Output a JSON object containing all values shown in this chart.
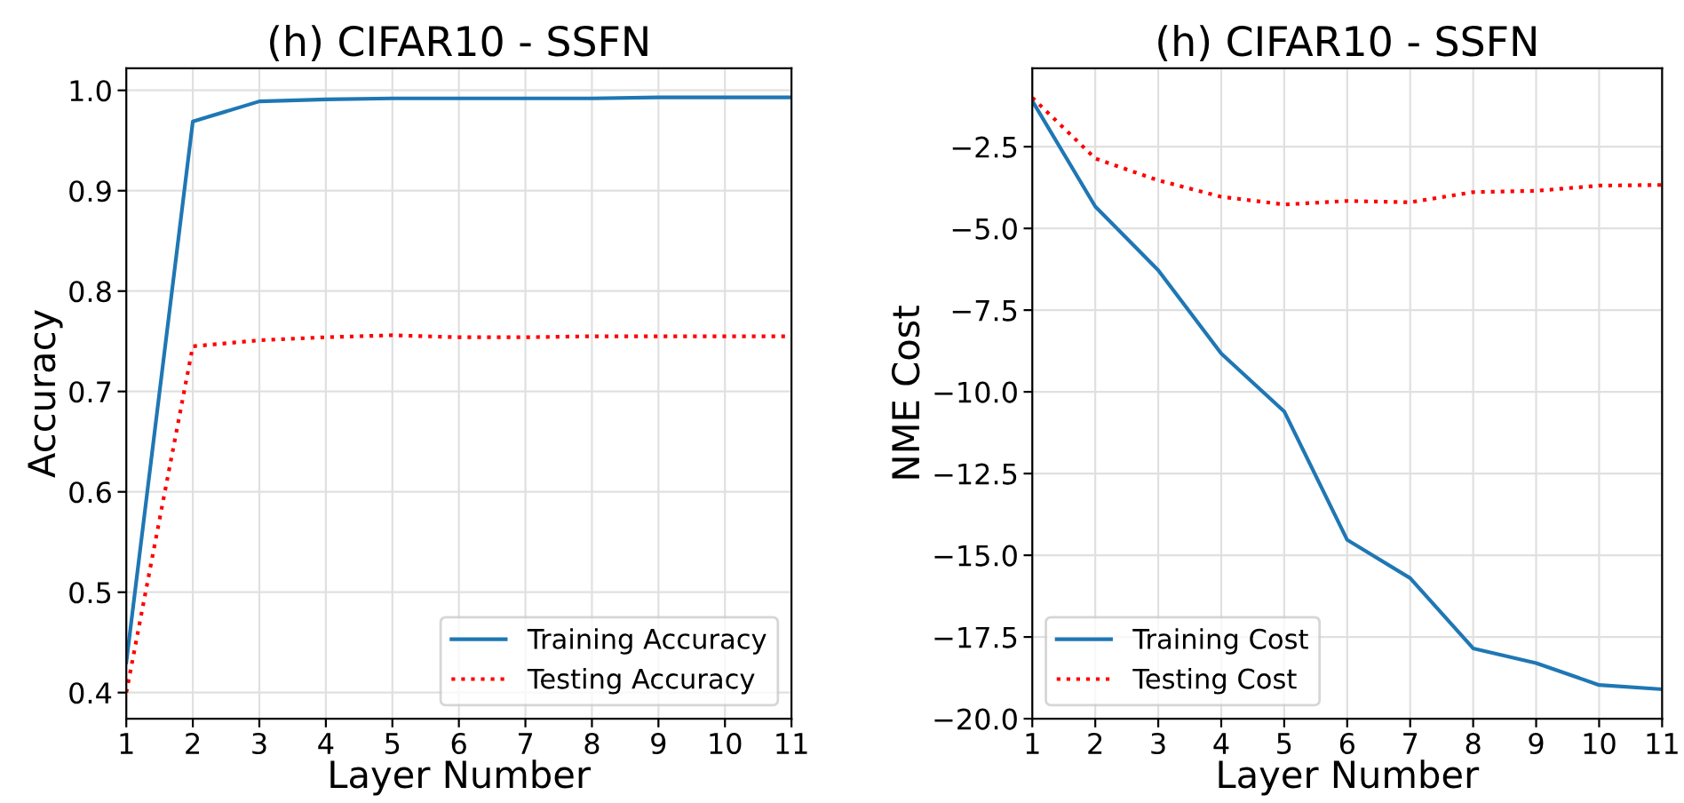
{
  "chart_data": [
    {
      "type": "line",
      "title": "(h) CIFAR10 - SSFN",
      "xlabel": "Layer Number",
      "ylabel": "Accuracy",
      "x": [
        1,
        2,
        3,
        4,
        5,
        6,
        7,
        8,
        9,
        10,
        11
      ],
      "series": [
        {
          "name": "Training Accuracy",
          "color": "#1f77b4",
          "line_style": "solid",
          "values": [
            0.43,
            0.969,
            0.989,
            0.991,
            0.992,
            0.992,
            0.992,
            0.992,
            0.993,
            0.993,
            0.993
          ]
        },
        {
          "name": "Testing Accuracy",
          "color": "#ff0000",
          "line_style": "dotted",
          "values": [
            0.4,
            0.745,
            0.751,
            0.754,
            0.756,
            0.754,
            0.754,
            0.755,
            0.755,
            0.755,
            0.755
          ]
        }
      ],
      "xlim": [
        1,
        11
      ],
      "xticks": [
        1,
        2,
        3,
        4,
        5,
        6,
        7,
        8,
        9,
        10,
        11
      ],
      "ylim": [
        0.374,
        1.022
      ],
      "yticks": [
        {
          "value": 0.4,
          "label": "0.4"
        },
        {
          "value": 0.5,
          "label": "0.5"
        },
        {
          "value": 0.6,
          "label": "0.6"
        },
        {
          "value": 0.7,
          "label": "0.7"
        },
        {
          "value": 0.8,
          "label": "0.8"
        },
        {
          "value": 0.9,
          "label": "0.9"
        },
        {
          "value": 1.0,
          "label": "1.0"
        }
      ],
      "grid": true,
      "legend": "bottom right"
    },
    {
      "type": "line",
      "title": "(h) CIFAR10 - SSFN",
      "xlabel": "Layer Number",
      "ylabel": "NME Cost",
      "x": [
        1,
        2,
        3,
        4,
        5,
        6,
        7,
        8,
        9,
        10,
        11
      ],
      "series": [
        {
          "name": "Training Cost",
          "color": "#1f77b4",
          "line_style": "solid",
          "values": [
            -1.1,
            -4.33,
            -6.28,
            -8.83,
            -10.6,
            -14.53,
            -15.7,
            -17.85,
            -18.3,
            -18.97,
            -19.1
          ]
        },
        {
          "name": "Testing Cost",
          "color": "#ff0000",
          "line_style": "dotted",
          "values": [
            -1.0,
            -2.86,
            -3.53,
            -4.03,
            -4.27,
            -4.16,
            -4.2,
            -3.89,
            -3.85,
            -3.69,
            -3.67
          ]
        }
      ],
      "xlim": [
        1,
        11
      ],
      "xticks": [
        1,
        2,
        3,
        4,
        5,
        6,
        7,
        8,
        9,
        10,
        11
      ],
      "ylim": [
        -20,
        -0.1
      ],
      "yticks": [
        {
          "value": -20,
          "label": "−20.0"
        },
        {
          "value": -17.5,
          "label": "−17.5"
        },
        {
          "value": -15,
          "label": "−15.0"
        },
        {
          "value": -12.5,
          "label": "−12.5"
        },
        {
          "value": -10,
          "label": "−10.0"
        },
        {
          "value": -7.5,
          "label": "−7.5"
        },
        {
          "value": -5,
          "label": "−5.0"
        },
        {
          "value": -2.5,
          "label": "−2.5"
        }
      ],
      "grid": true,
      "legend": "bottom left"
    }
  ]
}
